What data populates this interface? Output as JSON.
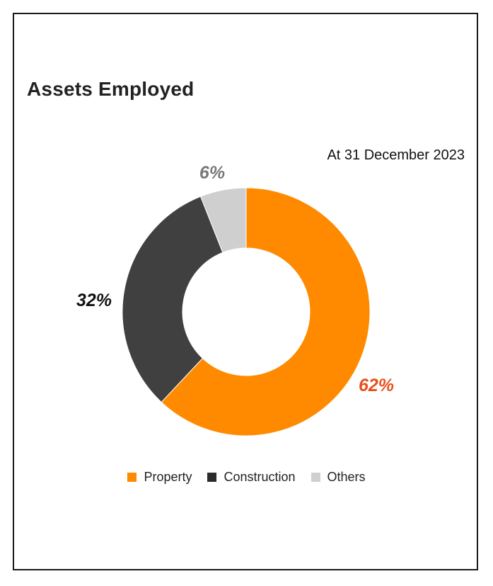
{
  "chart_data": {
    "type": "pie",
    "title": "Assets Employed",
    "subtitle": "At 31 December 2023",
    "donut": true,
    "slices": [
      {
        "label": "Property",
        "value": 62,
        "display": "62%",
        "color": "#FF8A00",
        "label_color": "#E8501B"
      },
      {
        "label": "Construction",
        "value": 32,
        "display": "32%",
        "color": "#404040",
        "label_color": "#111111"
      },
      {
        "label": "Others",
        "value": 6,
        "display": "6%",
        "color": "#CFCFCF",
        "label_color": "#777777"
      }
    ],
    "legend": {
      "placement": "bottom",
      "items": [
        {
          "label": "Property",
          "color": "#FF8A00"
        },
        {
          "label": "Construction",
          "color": "#2B2B2B"
        },
        {
          "label": "Others",
          "color": "#CFCFCF"
        }
      ]
    }
  }
}
